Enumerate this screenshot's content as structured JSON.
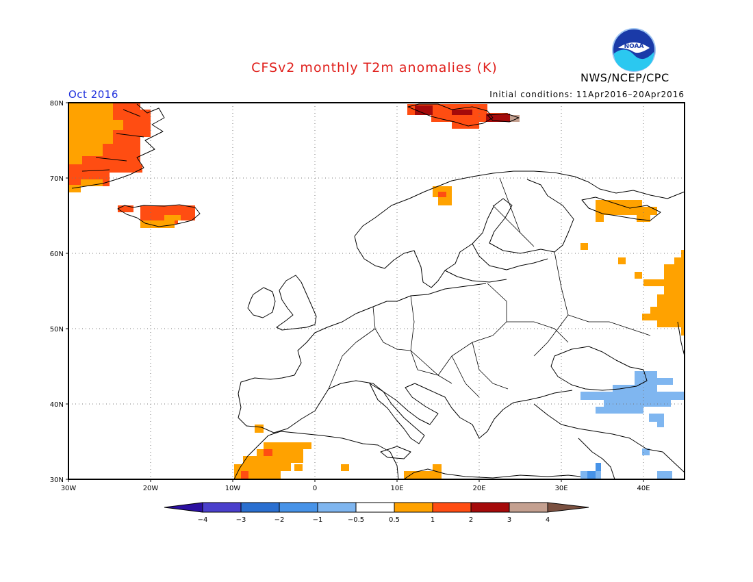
{
  "header": {
    "title": "CFSv2 monthly T2m anomalies (K)",
    "organization": "NWS/NCEP/CPC",
    "logo_text": "NOAA",
    "valid_month": "Oct 2016",
    "initial_conditions": "Initial conditions: 11Apr2016–20Apr2016"
  },
  "map": {
    "region": "Europe",
    "lon_range": [
      -30,
      45
    ],
    "lat_range": [
      30,
      80
    ],
    "lat_labels": [
      "80N",
      "70N",
      "60N",
      "50N",
      "40N",
      "30N"
    ],
    "lon_labels": [
      "30W",
      "20W",
      "10W",
      "0",
      "10E",
      "20E",
      "30E",
      "40E"
    ],
    "gridlines": "dotted"
  },
  "colorbar": {
    "labels": [
      "−4",
      "−3",
      "−2",
      "−1",
      "−0.5",
      "0.5",
      "1",
      "2",
      "3",
      "4"
    ],
    "colors": [
      "#2b0fa0",
      "#4a3fcc",
      "#2a6fd0",
      "#4793e8",
      "#7fb6f0",
      "#ffffff",
      "#ffa200",
      "#ff4d12",
      "#a50a0a",
      "#c4a090",
      "#7a5040"
    ]
  }
}
